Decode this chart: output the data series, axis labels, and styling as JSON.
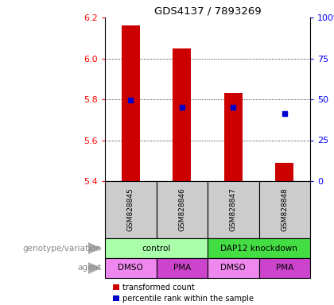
{
  "title": "GDS4137 / 7893269",
  "samples": [
    "GSM828845",
    "GSM828846",
    "GSM828847",
    "GSM828848"
  ],
  "bar_values": [
    6.16,
    6.05,
    5.83,
    5.49
  ],
  "bar_bottom": 5.4,
  "percentile_values": [
    5.795,
    5.762,
    5.762,
    5.732
  ],
  "ylim": [
    5.4,
    6.2
  ],
  "yticks_left": [
    5.4,
    5.6,
    5.8,
    6.0,
    6.2
  ],
  "yticks_right_pct": [
    0,
    25,
    50,
    75,
    100
  ],
  "bar_color": "#cc0000",
  "percentile_color": "#0000cc",
  "genotype_colors": [
    "#aaffaa",
    "#44dd44"
  ],
  "genotype_labels": [
    "control",
    "DAP12 knockdown"
  ],
  "agent_color_dmso": "#ee88ee",
  "agent_color_pma": "#cc44cc",
  "agent_labels": [
    "DMSO",
    "PMA",
    "DMSO",
    "PMA"
  ],
  "row_label_genotype": "genotype/variation",
  "row_label_agent": "agent",
  "legend_red": "transformed count",
  "legend_blue": "percentile rank within the sample",
  "sample_box_color": "#cccccc",
  "bar_width": 0.35
}
